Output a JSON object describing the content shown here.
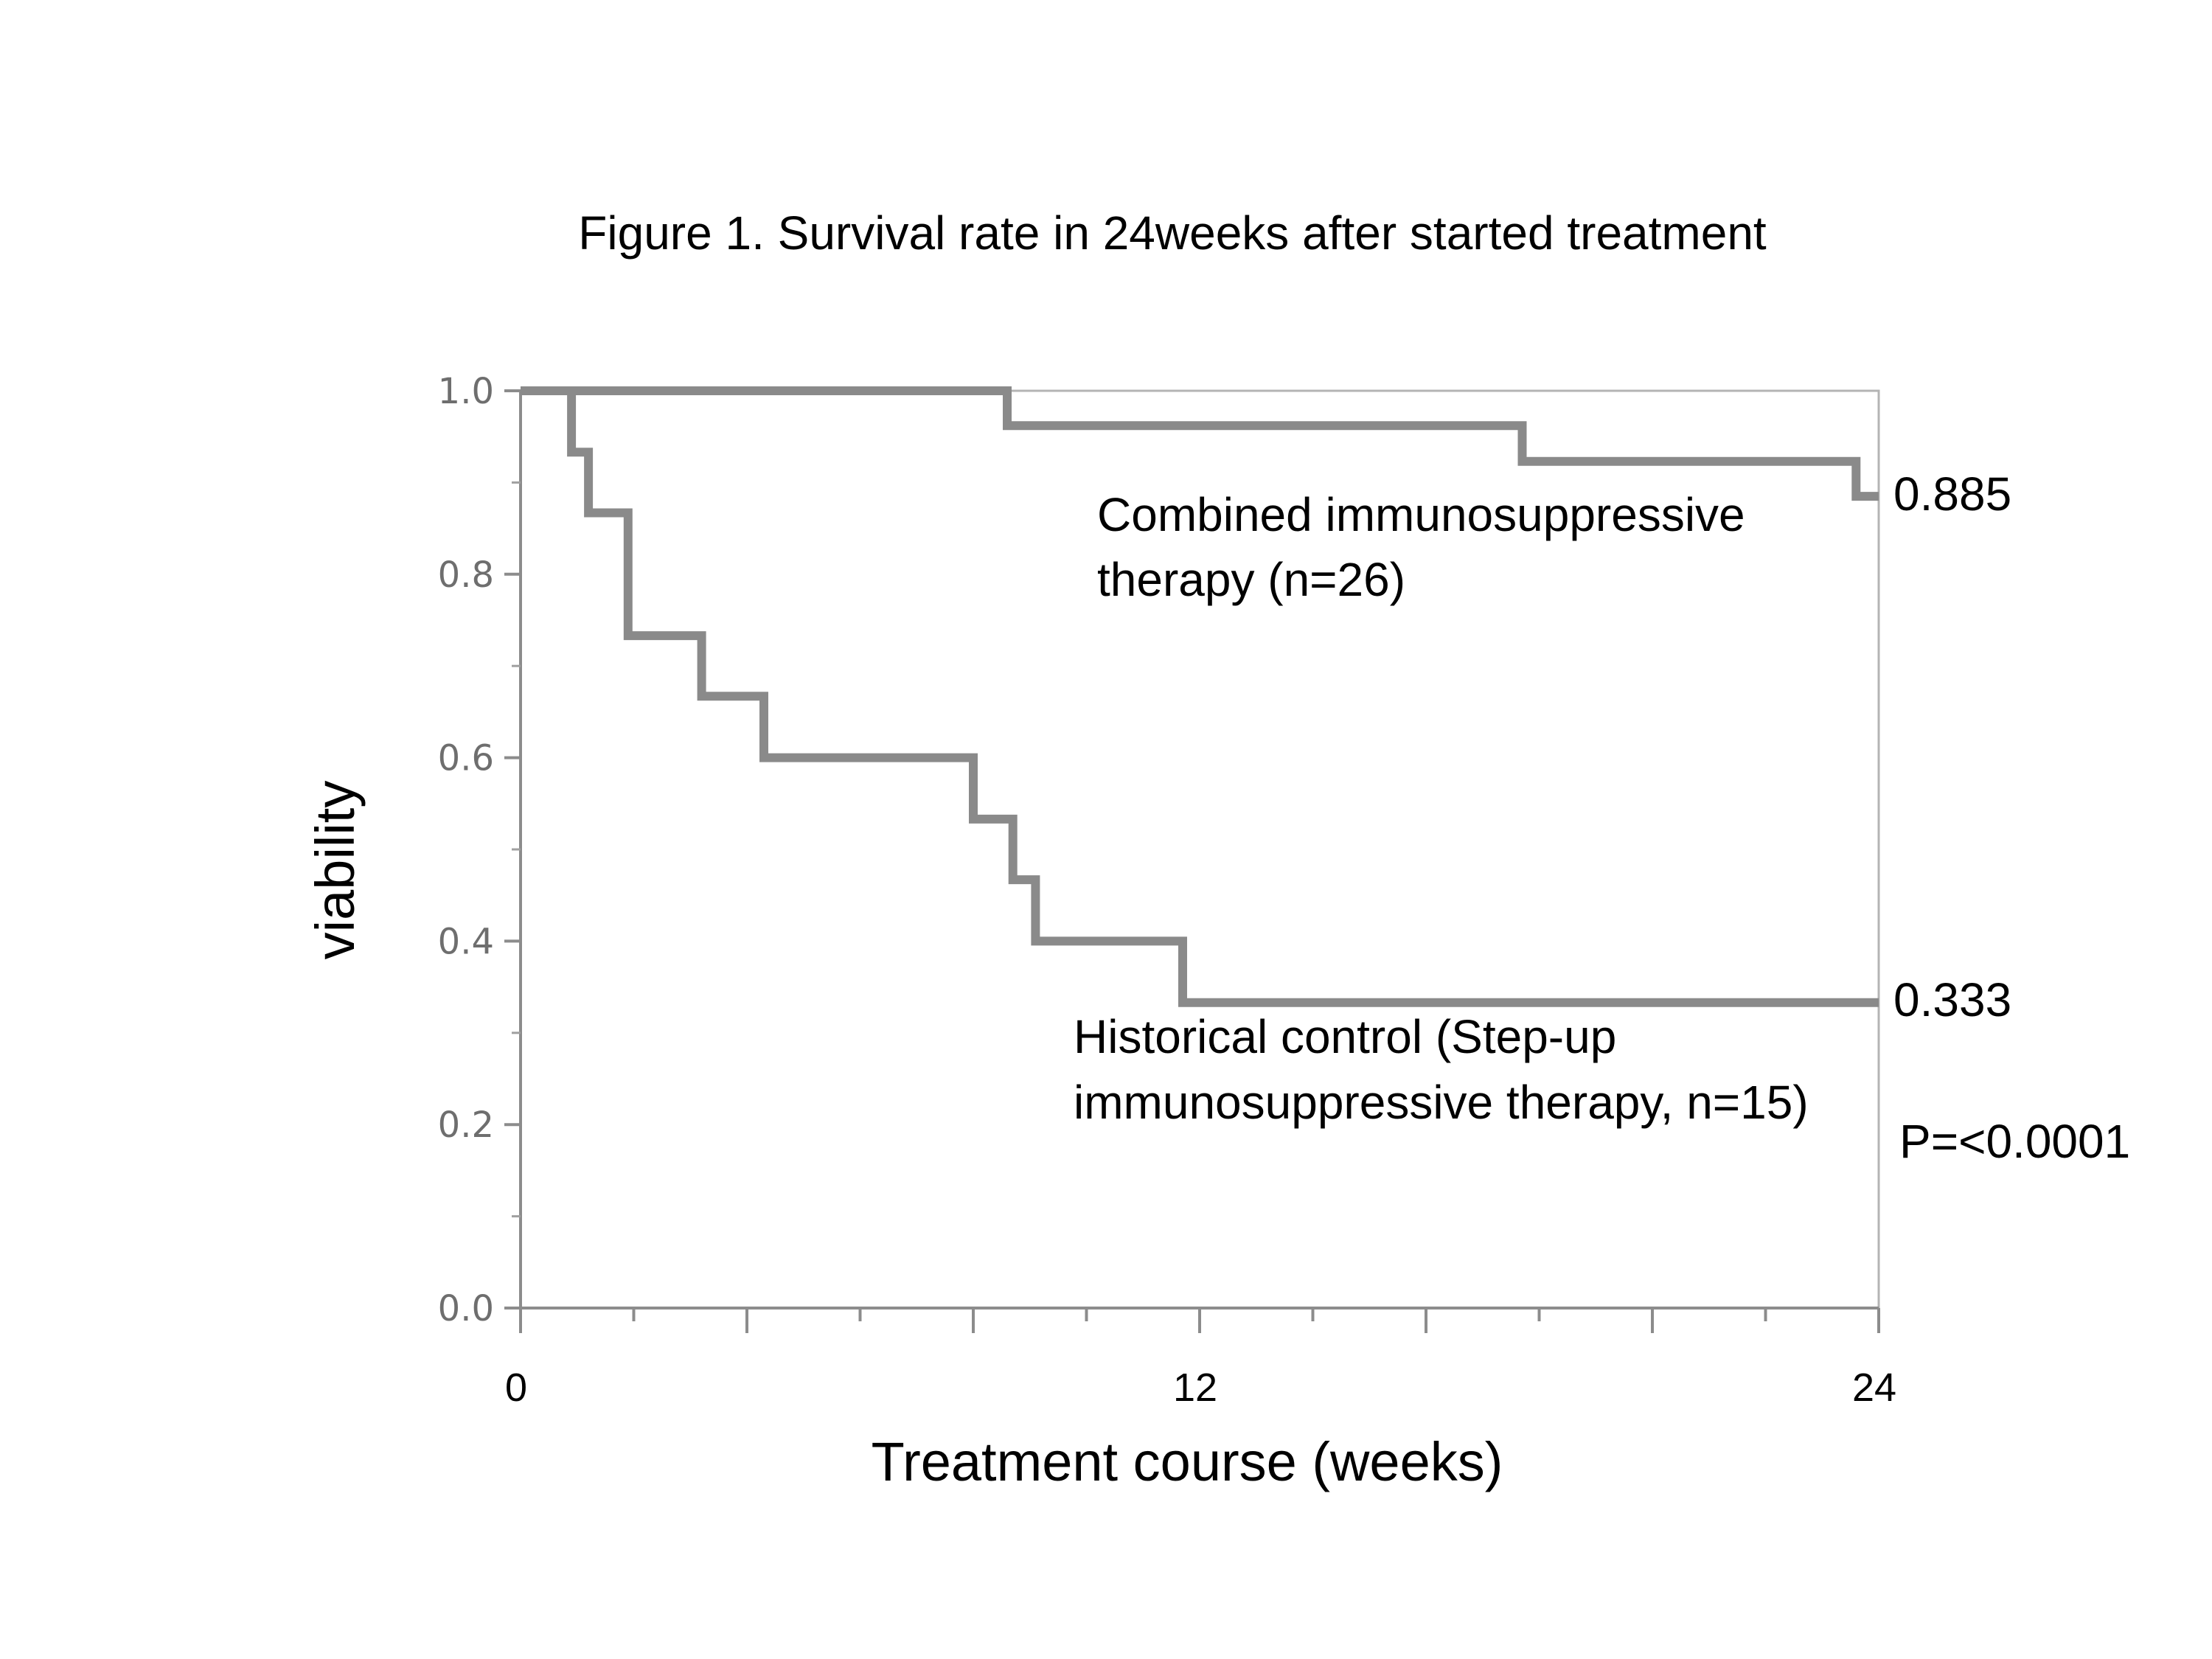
{
  "chart_data": {
    "type": "line",
    "title": "Figure 1. Survival rate in 24weeks after started treatment",
    "xlabel": "Treatment course (weeks)",
    "ylabel": "viability",
    "xlim": [
      0,
      24
    ],
    "ylim": [
      0,
      1.0
    ],
    "x_ticks": [
      "0",
      "12",
      "24"
    ],
    "y_ticks": [
      "0.0",
      "0.2",
      "0.4",
      "0.6",
      "0.8",
      "1.0"
    ],
    "series": [
      {
        "name": "Combined immunosuppressive therapy (n=26)",
        "label_lines": [
          "Combined immunosuppressive",
          "therapy (n=26)"
        ],
        "end_label": "0.885",
        "color": "#8a8a8a",
        "x": [
          0,
          8.6,
          8.6,
          17.7,
          17.7,
          23.6,
          23.6,
          24
        ],
        "y": [
          1.0,
          1.0,
          0.962,
          0.962,
          0.923,
          0.923,
          0.885,
          0.885
        ]
      },
      {
        "name": "Historical control (Step-up immunosuppressive therapy, n=15)",
        "label_lines": [
          "Historical control (Step-up",
          "immunosuppressive therapy, n=15)"
        ],
        "end_label": "0.333",
        "color": "#8a8a8a",
        "x": [
          0,
          0.9,
          0.9,
          1.2,
          1.2,
          1.9,
          1.9,
          3.2,
          3.2,
          4.3,
          4.3,
          8.0,
          8.0,
          8.7,
          8.7,
          9.1,
          9.1,
          11.7,
          11.7,
          24
        ],
        "y": [
          1.0,
          1.0,
          0.933,
          0.933,
          0.867,
          0.867,
          0.733,
          0.733,
          0.667,
          0.667,
          0.6,
          0.6,
          0.533,
          0.533,
          0.467,
          0.467,
          0.4,
          0.4,
          0.333,
          0.333
        ]
      }
    ],
    "annotations": [
      "P=<0.0001"
    ]
  }
}
